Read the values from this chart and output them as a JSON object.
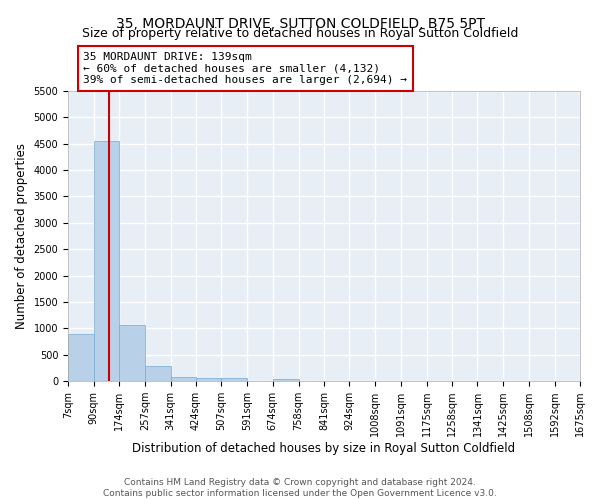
{
  "title": "35, MORDAUNT DRIVE, SUTTON COLDFIELD, B75 5PT",
  "subtitle": "Size of property relative to detached houses in Royal Sutton Coldfield",
  "xlabel": "Distribution of detached houses by size in Royal Sutton Coldfield",
  "ylabel": "Number of detached properties",
  "footer_line1": "Contains HM Land Registry data © Crown copyright and database right 2024.",
  "footer_line2": "Contains public sector information licensed under the Open Government Licence v3.0.",
  "bins": [
    7,
    90,
    174,
    257,
    341,
    424,
    507,
    591,
    674,
    758,
    841,
    924,
    1008,
    1091,
    1175,
    1258,
    1341,
    1425,
    1508,
    1592,
    1675
  ],
  "bin_labels": [
    "7sqm",
    "90sqm",
    "174sqm",
    "257sqm",
    "341sqm",
    "424sqm",
    "507sqm",
    "591sqm",
    "674sqm",
    "758sqm",
    "841sqm",
    "924sqm",
    "1008sqm",
    "1091sqm",
    "1175sqm",
    "1258sqm",
    "1341sqm",
    "1425sqm",
    "1508sqm",
    "1592sqm",
    "1675sqm"
  ],
  "bar_heights": [
    900,
    4560,
    1070,
    290,
    80,
    60,
    60,
    0,
    50,
    0,
    0,
    0,
    0,
    0,
    0,
    0,
    0,
    0,
    0,
    0
  ],
  "bar_color": "#b8d0e8",
  "bar_edge_color": "#7aaad0",
  "red_line_x": 139,
  "annotation_text": "35 MORDAUNT DRIVE: 139sqm\n← 60% of detached houses are smaller (4,132)\n39% of semi-detached houses are larger (2,694) →",
  "annotation_box_color": "white",
  "annotation_border_color": "#cc0000",
  "ylim": [
    0,
    5500
  ],
  "yticks": [
    0,
    500,
    1000,
    1500,
    2000,
    2500,
    3000,
    3500,
    4000,
    4500,
    5000,
    5500
  ],
  "background_color": "#e8eef6",
  "grid_color": "white",
  "title_fontsize": 10,
  "subtitle_fontsize": 9,
  "label_fontsize": 8.5,
  "tick_fontsize": 7,
  "annotation_fontsize": 8,
  "footer_fontsize": 6.5
}
